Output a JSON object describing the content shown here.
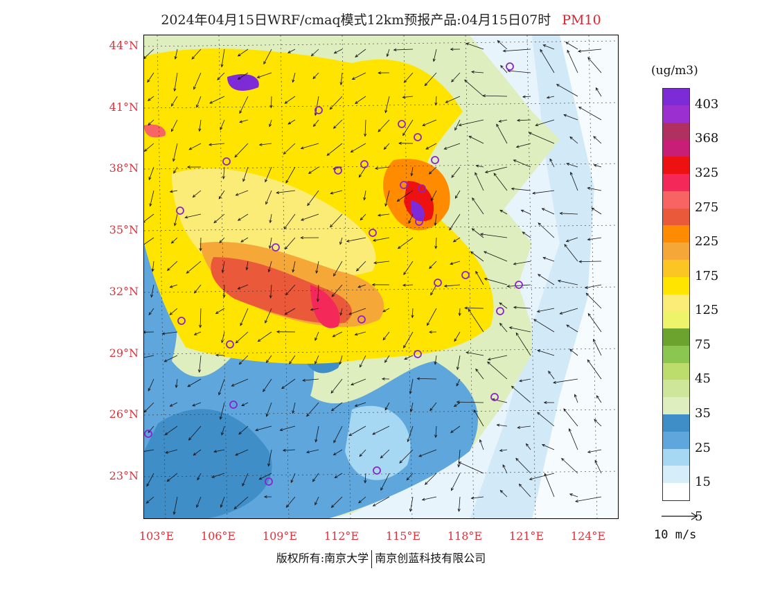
{
  "title": {
    "main": "2024年04月15日WRF/cmaq模式12km预报产品:04月15日07时",
    "pollutant": "PM10"
  },
  "map": {
    "lat_labels": [
      "44°N",
      "41°N",
      "38°N",
      "35°N",
      "32°N",
      "29°N",
      "26°N",
      "23°N"
    ],
    "lon_labels": [
      "103°E",
      "106°E",
      "109°E",
      "112°E",
      "115°E",
      "118°E",
      "121°E",
      "124°E"
    ],
    "colors": {
      "frame": "#000000",
      "label": "#e0303a",
      "marker": "#8b22cc"
    }
  },
  "colorbar": {
    "unit": "(ug/m3)",
    "colors": [
      "#7d2bd6",
      "#9b2fd0",
      "#b03060",
      "#c81e78",
      "#ee1111",
      "#f5285a",
      "#f86464",
      "#ea5a3a",
      "#ff8c00",
      "#f5a838",
      "#fbc624",
      "#ffe400",
      "#fbec78",
      "#eef46a",
      "#6ca22e",
      "#8ac650",
      "#bcdc6c",
      "#cde69a",
      "#dfeebe",
      "#3f8ec8",
      "#5ea6dc",
      "#a6d8f4",
      "#d6edfa",
      "#ffffff"
    ],
    "labels": [
      "403",
      "368",
      "325",
      "275",
      "225",
      "175",
      "125",
      "75",
      "45",
      "35",
      "25",
      "15",
      "5"
    ]
  },
  "wind_reference": {
    "label": "10 m/s"
  },
  "footer": {
    "left": "版权所有:南京大学",
    "right": "南京创蓝科技有限公司"
  }
}
